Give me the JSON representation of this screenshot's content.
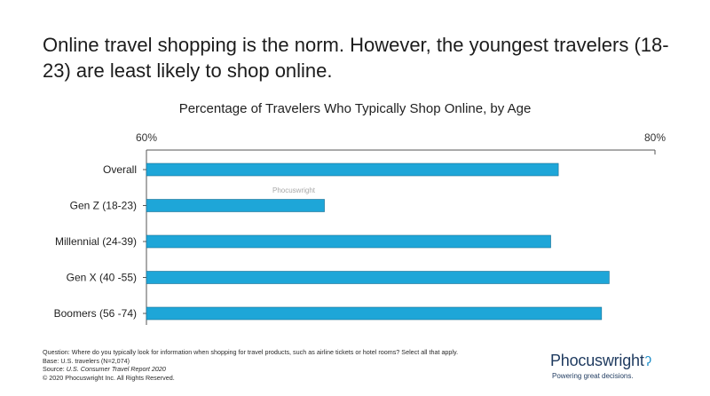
{
  "headline": "Online travel shopping is the norm. However, the youngest travelers (18-23) are least likely to shop online.",
  "watermark": "Phocuswright",
  "footnotes": {
    "question": "Question: Where do you typically look for information when shopping for travel products, such as airline tickets or hotel rooms? Select all that apply.",
    "base": "Base: U.S. travelers (N=2,074)",
    "source_prefix": "Source: ",
    "source_title": "U.S. Consumer Travel Report 2020",
    "copyright": "© 2020 Phocuswright Inc. All Rights Reserved."
  },
  "logo": {
    "name": "Phocuswright",
    "mark": "ʔ",
    "tagline": "Powering great decisions."
  },
  "colors": {
    "bar": "#1EA6D8",
    "axis": "#555555"
  },
  "chart_data": {
    "type": "bar",
    "orientation": "horizontal",
    "title": "Percentage of Travelers Who Typically Shop Online, by Age",
    "categories": [
      "Overall",
      "Gen Z (18-23)",
      "Millennial (24-39)",
      "Gen X (40 -55)",
      "Boomers (56 -74)"
    ],
    "values": [
      76.2,
      67.0,
      75.9,
      78.2,
      77.9
    ],
    "xlim": [
      60,
      80
    ],
    "x_ticks": [
      60,
      80
    ],
    "x_tick_labels": [
      "60%",
      "80%"
    ],
    "xlabel": "",
    "ylabel": "",
    "grid": false,
    "legend": "none"
  }
}
